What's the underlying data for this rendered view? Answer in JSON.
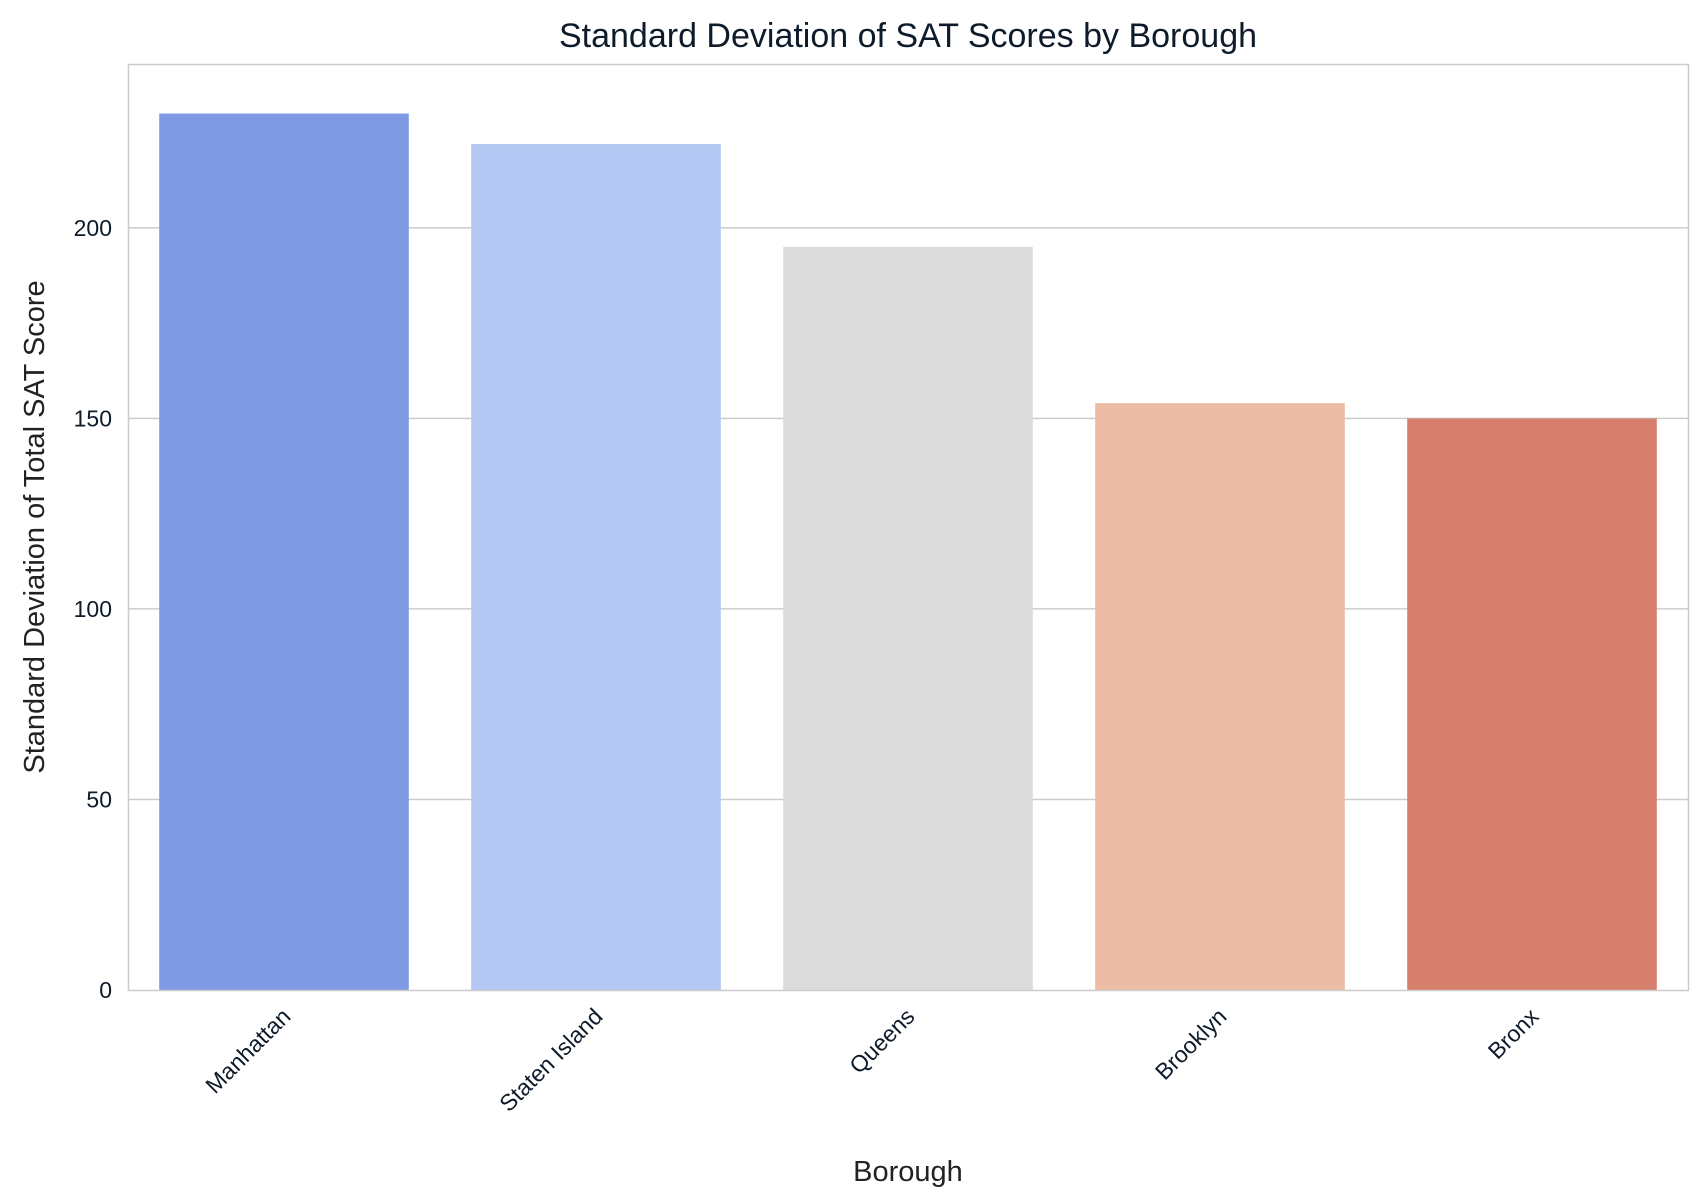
{
  "chart_data": {
    "type": "bar",
    "title": "Standard Deviation of SAT Scores by Borough",
    "xlabel": "Borough",
    "ylabel": "Standard Deviation of Total SAT Score",
    "categories": [
      "Manhattan",
      "Staten Island",
      "Queens",
      "Brooklyn",
      "Bronx"
    ],
    "values": [
      230,
      222,
      195,
      154,
      150
    ],
    "colors": [
      "#7f9ae2",
      "#b4c8f3",
      "#dcdcdc",
      "#ecbca5",
      "#d67f6c"
    ],
    "ylim": [
      0,
      243
    ],
    "yticks": [
      0,
      50,
      100,
      150,
      200
    ],
    "grid": true,
    "grid_axis": "y",
    "legend": "none"
  }
}
